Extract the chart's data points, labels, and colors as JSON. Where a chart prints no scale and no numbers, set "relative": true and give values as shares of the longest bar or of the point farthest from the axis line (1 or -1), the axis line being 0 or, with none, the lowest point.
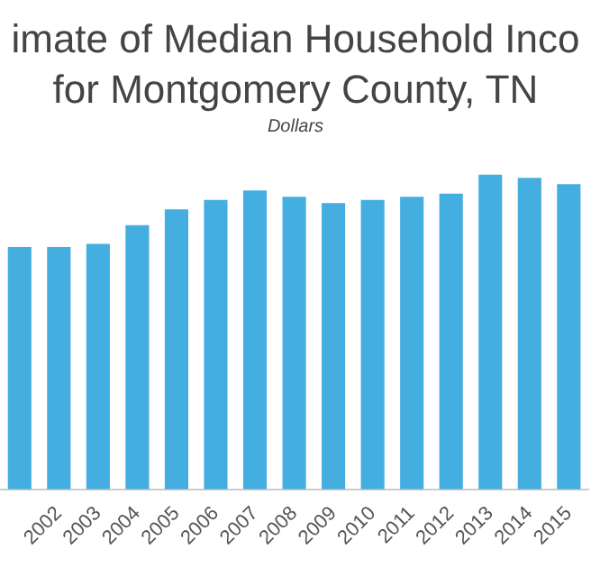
{
  "chart_data": {
    "type": "bar",
    "title": "imate of Median Household Inco\nfor Montgomery County, TN",
    "subtitle": "Dollars",
    "relative": true,
    "categories": [
      null,
      "2002",
      "2003",
      "2004",
      "2005",
      "2006",
      "2007",
      "2008",
      "2009",
      "2010",
      "2011",
      "2012",
      "2013",
      "2014",
      "2015"
    ],
    "values": [
      0.77,
      0.77,
      0.78,
      0.84,
      0.89,
      0.92,
      0.95,
      0.93,
      0.91,
      0.92,
      0.93,
      0.94,
      1,
      0.99,
      0.97
    ],
    "color": "#45aee0",
    "grid": false,
    "legend": false
  }
}
